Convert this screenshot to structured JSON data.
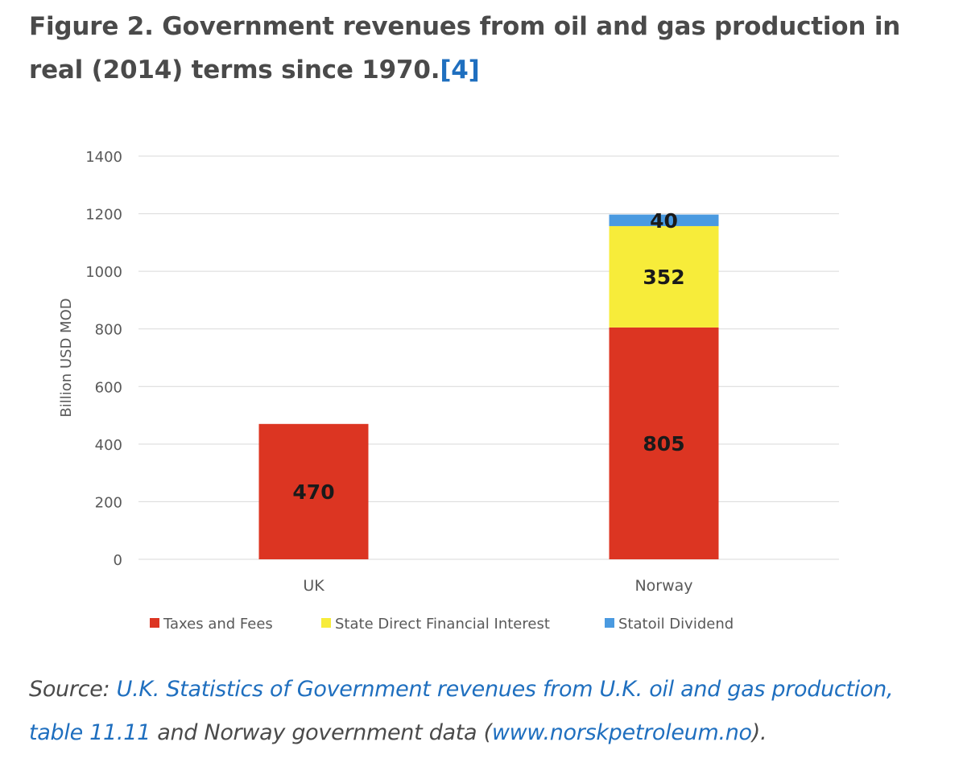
{
  "figure": {
    "title_prefix": "Figure 2. Government revenues from oil and gas production in real (2014) terms since 1970.",
    "reference_link": "[4]"
  },
  "source": {
    "prefix": "Source: ",
    "link1": "U.K. Statistics of Government revenues from U.K. oil and gas production, table 11.11",
    "middle": " and Norway government data (",
    "link2": "www.norskpetroleum.no",
    "suffix": ")."
  },
  "chart_data": {
    "type": "bar",
    "stacked": true,
    "categories": [
      "UK",
      "Norway"
    ],
    "ylabel": "Billion USD MOD",
    "ylim": [
      0,
      1400
    ],
    "yticks": [
      0,
      200,
      400,
      600,
      800,
      1000,
      1200,
      1400
    ],
    "grid": true,
    "legend_position": "bottom",
    "series": [
      {
        "name": "Taxes and Fees",
        "color": "#dc3522",
        "values": [
          470,
          805
        ],
        "labels": [
          "470",
          "805"
        ]
      },
      {
        "name": "State Direct Financial Interest",
        "color": "#f7ec3a",
        "values": [
          0,
          352
        ],
        "labels": [
          "",
          "352"
        ]
      },
      {
        "name": "Statoil Dividend",
        "color": "#4a9ae0",
        "values": [
          0,
          40
        ],
        "labels": [
          "",
          "40"
        ]
      }
    ]
  }
}
